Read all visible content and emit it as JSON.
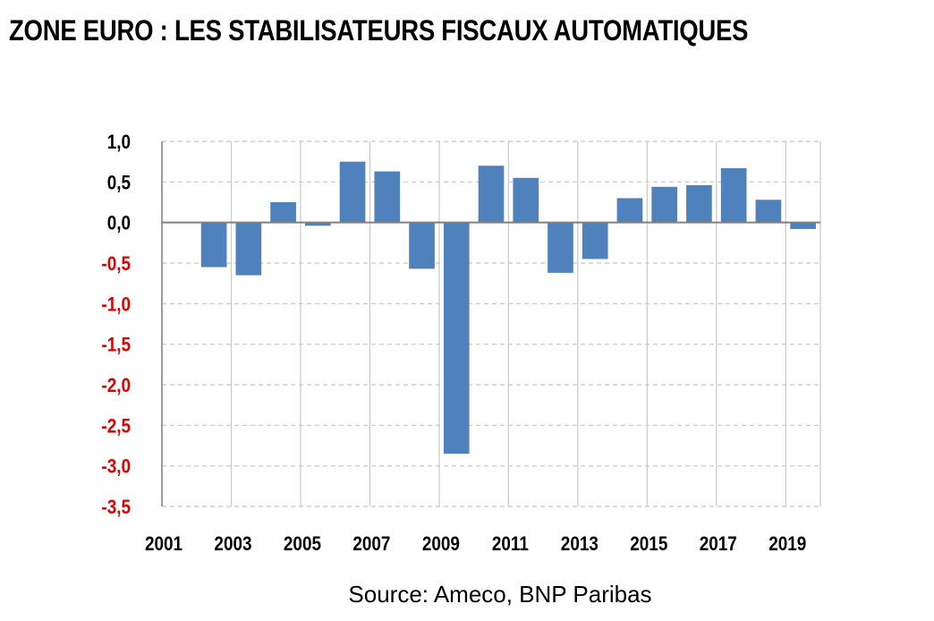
{
  "title": "ZONE EURO : LES STABILISATEURS FISCAUX AUTOMATIQUES",
  "source": "Source: Ameco, BNP Paribas",
  "colors": {
    "bar": "#4f81bd",
    "positive_tick": "#000000",
    "negative_tick": "#e00000",
    "grid": "#c8c8c8",
    "axis": "#808080"
  },
  "chart_data": {
    "type": "bar",
    "title": "ZONE EURO : LES STABILISATEURS FISCAUX AUTOMATIQUES",
    "xlabel": "",
    "ylabel": "",
    "ylim": [
      -3.5,
      1.0
    ],
    "grid": true,
    "legend": "none",
    "y_ticks": [
      "1,0",
      "0,5",
      "0,0",
      "-0,5",
      "-1,0",
      "-1,5",
      "-2,0",
      "-2,5",
      "-3,0",
      "-3,5"
    ],
    "y_tick_values": [
      1.0,
      0.5,
      0.0,
      -0.5,
      -1.0,
      -1.5,
      -2.0,
      -2.5,
      -3.0,
      -3.5
    ],
    "x_tick_labels": [
      "2001",
      "2003",
      "2005",
      "2007",
      "2009",
      "2011",
      "2013",
      "2015",
      "2017",
      "2019"
    ],
    "categories": [
      "2001",
      "2002",
      "2003",
      "2004",
      "2005",
      "2006",
      "2007",
      "2008",
      "2009",
      "2010",
      "2011",
      "2012",
      "2013",
      "2014",
      "2015",
      "2016",
      "2017",
      "2018",
      "2019"
    ],
    "values": [
      0.0,
      -0.55,
      -0.65,
      0.25,
      -0.04,
      0.75,
      0.63,
      -0.57,
      -2.85,
      0.7,
      0.55,
      -0.62,
      -0.45,
      0.3,
      0.44,
      0.46,
      0.67,
      0.28,
      -0.08
    ]
  }
}
